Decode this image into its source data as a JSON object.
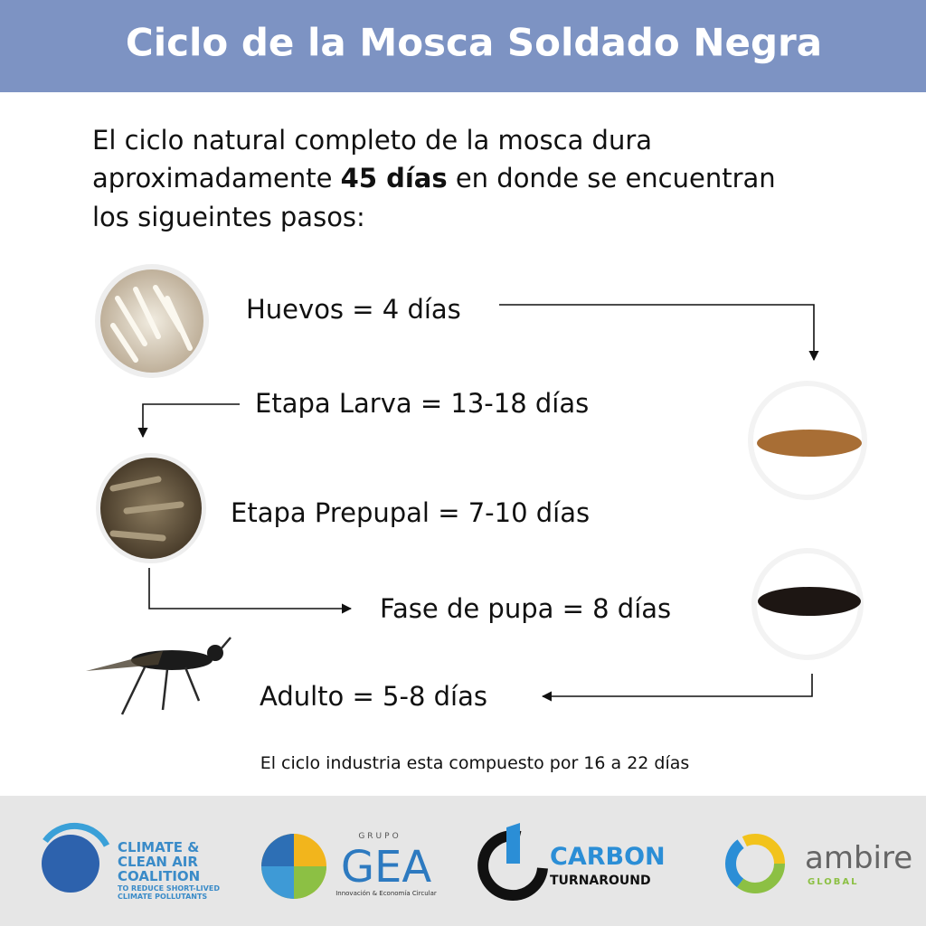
{
  "header": {
    "title": "Ciclo de la Mosca Soldado Negra"
  },
  "intro": [
    "El ciclo natural completo de la mosca dura",
    "aproximadamente ",
    "45 días",
    " en donde se encuentran",
    "los sigueintes pasos:"
  ],
  "stages": [
    "Huevos = 4 días",
    "Etapa Larva = 13-18 días",
    "Etapa Prepupal = 7-10 días",
    "Fase de pupa = 8 días",
    "Adulto = 5-8 días"
  ],
  "note": "El ciclo industria esta compuesto por 16 a 22 días",
  "logos": {
    "ccac": [
      "CLIMATE &",
      "CLEAN AIR",
      "COALITION",
      "TO REDUCE SHORT-LIVED",
      "CLIMATE POLLUTANTS"
    ],
    "gea": [
      "GRUPO",
      "GEA",
      "Innovación & Economía Circular"
    ],
    "carbon": [
      "CARBON",
      "TURNAROUND"
    ],
    "ambire": [
      "ambire",
      "GLOBAL"
    ]
  }
}
